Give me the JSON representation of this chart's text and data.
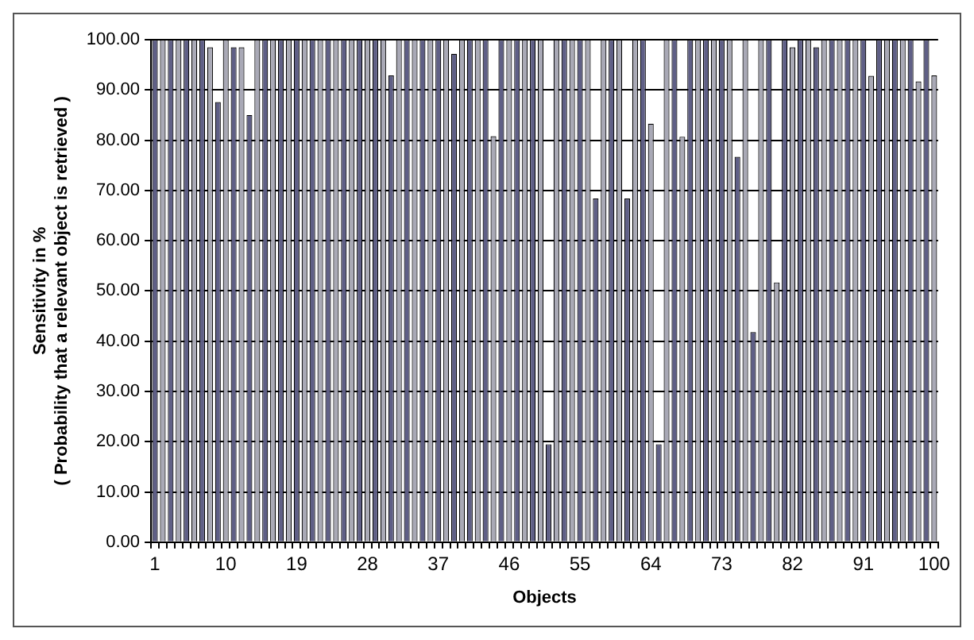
{
  "chart_data": {
    "type": "bar",
    "xlabel": "Objects",
    "ylabel": "Sensitivity in %\n( Probability that a relevant object is retrieved )",
    "categories": [
      "1",
      null,
      null,
      null,
      null,
      null,
      null,
      null,
      null,
      "10",
      null,
      null,
      null,
      null,
      null,
      null,
      null,
      null,
      "19",
      null,
      null,
      null,
      null,
      null,
      null,
      null,
      null,
      "28",
      null,
      null,
      null,
      null,
      null,
      null,
      null,
      null,
      "37",
      null,
      null,
      null,
      null,
      null,
      null,
      null,
      null,
      "46",
      null,
      null,
      null,
      null,
      null,
      null,
      null,
      null,
      "55",
      null,
      null,
      null,
      null,
      null,
      null,
      null,
      null,
      "64",
      null,
      null,
      null,
      null,
      null,
      null,
      null,
      null,
      "73",
      null,
      null,
      null,
      null,
      null,
      null,
      null,
      null,
      "82",
      null,
      null,
      null,
      null,
      null,
      null,
      null,
      null,
      "91",
      null,
      null,
      null,
      null,
      null,
      null,
      null,
      null,
      "100"
    ],
    "values": [
      100,
      100,
      100,
      100,
      100,
      100,
      100,
      98.5,
      87.6,
      100,
      98.5,
      98.5,
      85,
      100,
      100,
      100,
      100,
      100,
      100,
      100,
      100,
      100,
      100,
      100,
      100,
      100,
      100,
      100,
      100,
      100,
      92.9,
      100,
      100,
      100,
      100,
      100,
      100,
      100,
      97.2,
      100,
      100,
      100,
      100,
      80.8,
      100,
      100,
      100,
      100,
      100,
      100,
      19.5,
      100,
      100,
      100,
      100,
      100,
      68.4,
      100,
      100,
      100,
      68.4,
      100,
      100,
      83.3,
      19.5,
      100,
      100,
      80.7,
      100,
      100,
      100,
      100,
      100,
      100,
      76.7,
      100,
      41.8,
      100,
      100,
      51.7,
      100,
      98.5,
      100,
      100,
      98.5,
      100,
      100,
      100,
      100,
      100,
      100,
      92.8,
      100,
      100,
      100,
      100,
      100,
      91.7,
      100,
      92.9
    ],
    "colors": [
      "#5f5f86",
      "#a9a9b6",
      "#5f5f86",
      "#a9a9b6",
      "#5f5f86",
      "#a9a9b6",
      "#5f5f86",
      "#a9a9b6",
      "#5f5f86",
      "#a9a9b6",
      "#5f5f86",
      "#a9a9b6",
      "#5f5f86",
      "#a9a9b6",
      "#5f5f86",
      "#a9a9b6",
      "#5f5f86",
      "#a9a9b6",
      "#5f5f86",
      "#a9a9b6",
      "#5f5f86",
      "#a9a9b6",
      "#5f5f86",
      "#a9a9b6",
      "#5f5f86",
      "#a9a9b6",
      "#5f5f86",
      "#a9a9b6",
      "#5f5f86",
      "#a9a9b6",
      "#5f5f86",
      "#a9a9b6",
      "#5f5f86",
      "#a9a9b6",
      "#5f5f86",
      "#a9a9b6",
      "#5f5f86",
      "#a9a9b6",
      "#5f5f86",
      "#a9a9b6",
      "#5f5f86",
      "#a9a9b6",
      "#5f5f86",
      "#a9a9b6",
      "#5f5f86",
      "#a9a9b6",
      "#5f5f86",
      "#a9a9b6",
      "#5f5f86",
      "#a9a9b6",
      "#5f5f86",
      "#a9a9b6",
      "#5f5f86",
      "#a9a9b6",
      "#5f5f86",
      "#a9a9b6",
      "#5f5f86",
      "#a9a9b6",
      "#5f5f86",
      "#a9a9b6",
      "#5f5f86",
      "#a9a9b6",
      "#5f5f86",
      "#a9a9b6",
      "#5f5f86",
      "#a9a9b6",
      "#5f5f86",
      "#a9a9b6",
      "#5f5f86",
      "#a9a9b6",
      "#5f5f86",
      "#a9a9b6",
      "#5f5f86",
      "#a9a9b6",
      "#5f5f86",
      "#a9a9b6",
      "#5f5f86",
      "#a9a9b6",
      "#5f5f86",
      "#a9a9b6",
      "#5f5f86",
      "#a9a9b6",
      "#5f5f86",
      "#a9a9b6",
      "#5f5f86",
      "#a9a9b6",
      "#5f5f86",
      "#a9a9b6",
      "#5f5f86",
      "#a9a9b6",
      "#5f5f86",
      "#a9a9b6",
      "#5f5f86",
      "#a9a9b6",
      "#5f5f86",
      "#a9a9b6",
      "#5f5f86",
      "#a9a9b6",
      "#5f5f86",
      "#a9a9b6"
    ],
    "ylim": [
      0,
      100
    ],
    "yticks": [
      {
        "value": 0,
        "label": "0.00"
      },
      {
        "value": 10,
        "label": "10.00"
      },
      {
        "value": 20,
        "label": "20.00"
      },
      {
        "value": 30,
        "label": "30.00"
      },
      {
        "value": 40,
        "label": "40.00"
      },
      {
        "value": 50,
        "label": "50.00"
      },
      {
        "value": 60,
        "label": "60.00"
      },
      {
        "value": 70,
        "label": "70.00"
      },
      {
        "value": 80,
        "label": "80.00"
      },
      {
        "value": 90,
        "label": "90.00"
      },
      {
        "value": 100,
        "label": "100.00"
      }
    ],
    "grid": "y",
    "legend": false
  }
}
